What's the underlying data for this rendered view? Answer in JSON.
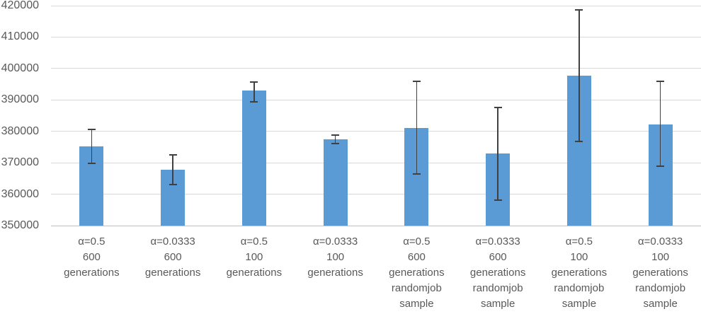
{
  "chart_data": {
    "type": "bar",
    "title": "",
    "xlabel": "",
    "ylabel": "",
    "ylim": [
      350000,
      420000
    ],
    "yticks": [
      420000,
      410000,
      400000,
      390000,
      380000,
      370000,
      360000,
      350000
    ],
    "grid": true,
    "legend": false,
    "categories": [
      "α=0.5 600 generations",
      "α=0.0333 600 generations",
      "α=0.5 100 generations",
      "α=0.0333 100 generations",
      "α=0.5 600 generations randomjob sample",
      "α=0.0333 600 generations randomjob sample",
      "α=0.5 100 generations randomjob sample",
      "α=0.0333 100 generations randomjob sample"
    ],
    "category_label_lines": [
      [
        "α=0.5",
        "600",
        "generations"
      ],
      [
        "α=0.0333",
        "600",
        "generations"
      ],
      [
        "α=0.5",
        "100",
        "generations"
      ],
      [
        "α=0.0333",
        "100",
        "generations"
      ],
      [
        "α=0.5",
        "600",
        "generations",
        "randomjob",
        "sample"
      ],
      [
        "α=0.0333",
        "600",
        "generations",
        "randomjob",
        "sample"
      ],
      [
        "α=0.5",
        "100",
        "generations",
        "randomjob",
        "sample"
      ],
      [
        "α=0.0333",
        "100",
        "generations",
        "randomjob",
        "sample"
      ]
    ],
    "values": [
      375100,
      367800,
      392900,
      377500,
      381100,
      373000,
      397700,
      382100
    ],
    "error_high": [
      380600,
      372600,
      395800,
      378900,
      396000,
      387700,
      418700,
      396000
    ],
    "error_low": [
      369700,
      363000,
      389400,
      376200,
      366500,
      358200,
      376800,
      368800
    ],
    "colors": {
      "bar_fill": "#5B9BD5",
      "gridline": "#D9D9D9",
      "axis_line": "#BFBFBF",
      "error_bar": "#404040",
      "tick_label": "#595959",
      "background": "#FFFFFF"
    }
  }
}
